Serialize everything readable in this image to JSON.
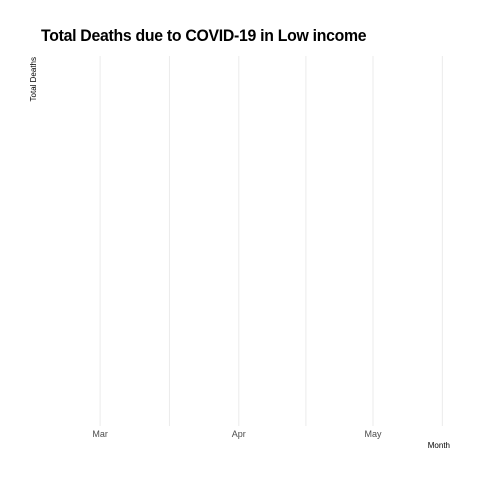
{
  "chart_data": {
    "type": "line",
    "title": "Total Deaths due to COVID-19 in Low income",
    "xlabel": "Month",
    "ylabel": "Total Deaths",
    "x_ticks": [
      "Mar",
      "Apr",
      "May"
    ],
    "x_tick_dates": [
      "2020-03-01",
      "2020-04-01",
      "2020-05-01"
    ],
    "xlim": [
      "2020-02-15",
      "2020-05-20"
    ],
    "series": [],
    "grid": true,
    "legend": "none",
    "colors": {
      "grid": "#ebebeb",
      "tick_label": "#4d4d4d",
      "axis_title": "#000000"
    }
  }
}
